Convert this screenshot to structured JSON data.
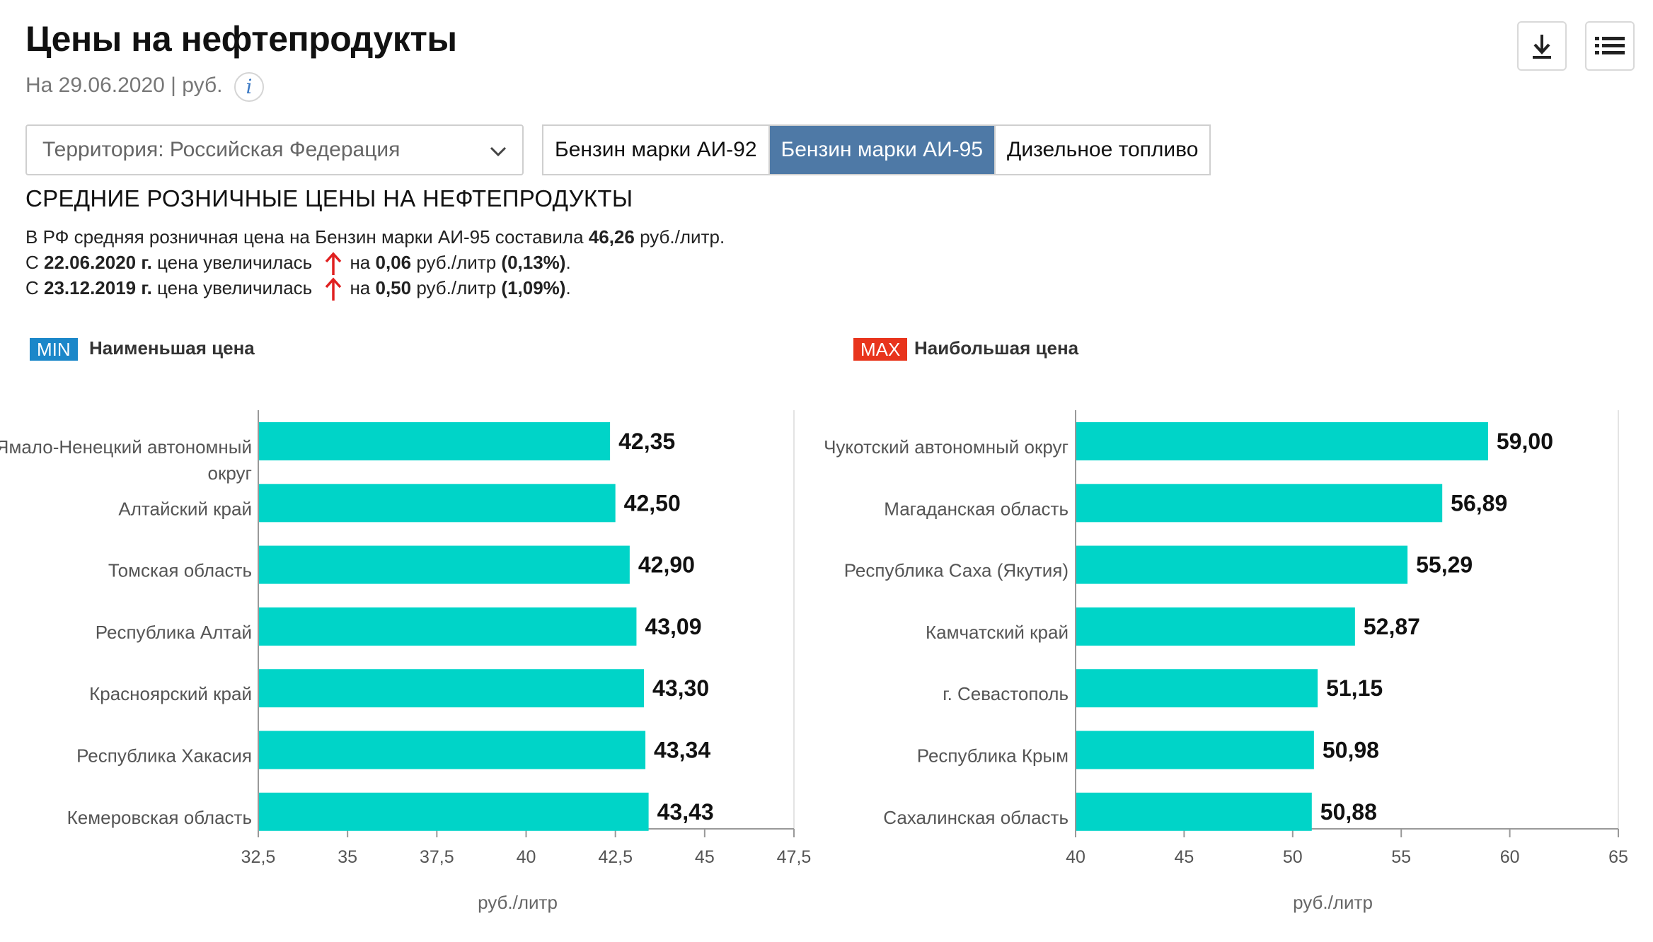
{
  "header": {
    "title": "Цены на нефтепродукты",
    "subtitle": "На 29.06.2020 | руб.",
    "info_icon_text": "i"
  },
  "controls": {
    "territory": "Территория: Российская  Федерация",
    "tabs": [
      {
        "label": "Бензин марки АИ-92",
        "selected": false
      },
      {
        "label": "Бензин марки АИ-95",
        "selected": true
      },
      {
        "label": "Дизельное топливо",
        "selected": false
      }
    ]
  },
  "section_title": "СРЕДНИЕ РОЗНИЧНЫЕ ЦЕНЫ НА НЕФТЕПРОДУКТЫ",
  "summary": {
    "line1_prefix": "В РФ средняя розничная цена на Бензин марки АИ-95 составила ",
    "line1_value": "46,26",
    "line1_suffix": " руб./литр.",
    "line2_prefix": "С ",
    "line2_date": "22.06.2020 г.",
    "line2_mid": " цена увеличилась",
    "line2_on": "на ",
    "line2_value": "0,06",
    "line2_unit": " руб./литр ",
    "line2_pct": "(0,13%)",
    "line2_end": ".",
    "line3_prefix": "С ",
    "line3_date": "23.12.2019 г.",
    "line3_mid": " цена увеличилась",
    "line3_on": "на ",
    "line3_value": "0,50",
    "line3_unit": " руб./литр ",
    "line3_pct": "(1,09%)",
    "line3_end": "."
  },
  "colors": {
    "bar": "#00d4c8",
    "min_badge": "#1b87c9",
    "max_badge": "#e8341c",
    "arrow": "#e02020",
    "tab_selected": "#4e79a6"
  },
  "legend": {
    "min_badge": "MIN",
    "min_label": "Наименьшая цена",
    "max_badge": "MAX",
    "max_label": "Наибольшая цена"
  },
  "chart_data": [
    {
      "type": "bar",
      "orientation": "horizontal",
      "categories": [
        "Ямало-Ненецкий автономный округ",
        "Алтайский край",
        "Томская область",
        "Республика Алтай",
        "Красноярский край",
        "Республика Хакасия",
        "Кемеровская область"
      ],
      "values": [
        42.35,
        42.5,
        42.9,
        43.09,
        43.3,
        43.34,
        43.43
      ],
      "value_labels": [
        "42,35",
        "42,50",
        "42,90",
        "43,09",
        "43,30",
        "43,34",
        "43,43"
      ],
      "xlim": [
        32.5,
        47.5
      ],
      "ticks": [
        32.5,
        35,
        37.5,
        40,
        42.5,
        45,
        47.5
      ],
      "tick_labels": [
        "32,5",
        "35",
        "37,5",
        "40",
        "42,5",
        "45",
        "47,5"
      ],
      "xlabel": "руб./литр"
    },
    {
      "type": "bar",
      "orientation": "horizontal",
      "categories": [
        "Чукотский автономный округ",
        "Магаданская область",
        "Республика Саха (Якутия)",
        "Камчатский край",
        "г. Севастополь",
        "Республика Крым",
        "Сахалинская область"
      ],
      "values": [
        59.0,
        56.89,
        55.29,
        52.87,
        51.15,
        50.98,
        50.88
      ],
      "value_labels": [
        "59,00",
        "56,89",
        "55,29",
        "52,87",
        "51,15",
        "50,98",
        "50,88"
      ],
      "xlim": [
        40,
        65
      ],
      "ticks": [
        40,
        45,
        50,
        55,
        60,
        65
      ],
      "tick_labels": [
        "40",
        "45",
        "50",
        "55",
        "60",
        "65"
      ],
      "xlabel": "руб./литр"
    }
  ]
}
